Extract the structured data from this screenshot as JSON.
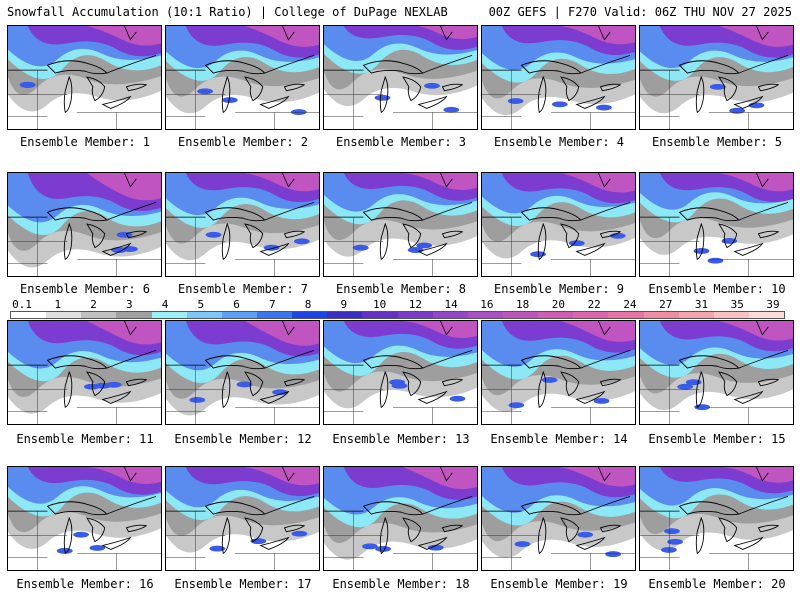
{
  "header": {
    "left": "Snowfall Accumulation (10:1 Ratio) | College of DuPage NEXLAB",
    "right": "00Z GEFS | F270 Valid: 06Z THU NOV 27 2025"
  },
  "colorbar": {
    "labels": [
      "0.1",
      "1",
      "2",
      "3",
      "4",
      "5",
      "6",
      "7",
      "8",
      "9",
      "10",
      "12",
      "14",
      "16",
      "18",
      "20",
      "22",
      "24",
      "27",
      "31",
      "35",
      "39"
    ],
    "colors": [
      "#ffffff",
      "#e0e0e0",
      "#c0c0c0",
      "#a0a0a0",
      "#9af0f6",
      "#7cc8f8",
      "#5aa0f6",
      "#3a74f0",
      "#1c44e8",
      "#3c2cc4",
      "#6030c8",
      "#7a3cc8",
      "#9448c8",
      "#a850c4",
      "#bc54bc",
      "#d05cb4",
      "#e064ac",
      "#e874a4",
      "#f08ca4",
      "#f4a4ac",
      "#f8c0c0",
      "#fcdcdc"
    ]
  },
  "members": [
    {
      "label": "Ensemble Member: 1",
      "snow_extent": 0.5,
      "heavy": 0.55
    },
    {
      "label": "Ensemble Member: 2",
      "snow_extent": 0.55,
      "heavy": 0.6
    },
    {
      "label": "Ensemble Member: 3",
      "snow_extent": 0.35,
      "heavy": 0.3
    },
    {
      "label": "Ensemble Member: 4",
      "snow_extent": 0.6,
      "heavy": 0.5
    },
    {
      "label": "Ensemble Member: 5",
      "snow_extent": 0.55,
      "heavy": 0.6
    },
    {
      "label": "Ensemble Member: 6",
      "snow_extent": 0.75,
      "heavy": 0.85
    },
    {
      "label": "Ensemble Member: 7",
      "snow_extent": 0.55,
      "heavy": 0.5
    },
    {
      "label": "Ensemble Member: 8",
      "snow_extent": 0.45,
      "heavy": 0.45
    },
    {
      "label": "Ensemble Member: 9",
      "snow_extent": 0.5,
      "heavy": 0.55
    },
    {
      "label": "Ensemble Member: 10",
      "snow_extent": 0.4,
      "heavy": 0.5
    },
    {
      "label": "Ensemble Member: 11",
      "snow_extent": 0.7,
      "heavy": 0.7
    },
    {
      "label": "Ensemble Member: 12",
      "snow_extent": 0.75,
      "heavy": 0.75
    },
    {
      "label": "Ensemble Member: 13",
      "snow_extent": 0.55,
      "heavy": 0.45
    },
    {
      "label": "Ensemble Member: 14",
      "snow_extent": 0.65,
      "heavy": 0.6
    },
    {
      "label": "Ensemble Member: 15",
      "snow_extent": 0.6,
      "heavy": 0.55
    },
    {
      "label": "Ensemble Member: 16",
      "snow_extent": 0.4,
      "heavy": 0.45
    },
    {
      "label": "Ensemble Member: 17",
      "snow_extent": 0.5,
      "heavy": 0.5
    },
    {
      "label": "Ensemble Member: 18",
      "snow_extent": 0.7,
      "heavy": 0.65
    },
    {
      "label": "Ensemble Member: 19",
      "snow_extent": 0.65,
      "heavy": 0.55
    },
    {
      "label": "Ensemble Member: 20",
      "snow_extent": 0.45,
      "heavy": 0.4
    }
  ]
}
